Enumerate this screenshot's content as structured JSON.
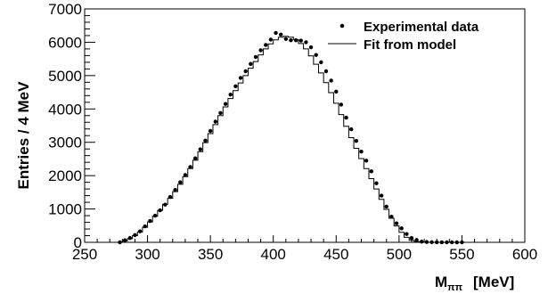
{
  "chart_data": {
    "type": "scatter",
    "title": "",
    "xlabel_main": "M",
    "xlabel_sub": "ππ",
    "xlabel_unit": "[MeV]",
    "ylabel": "Entries / 4 MeV",
    "xlim": [
      250,
      600
    ],
    "ylim": [
      0,
      7000
    ],
    "x_ticks": [
      250,
      300,
      350,
      400,
      450,
      500,
      550,
      600
    ],
    "y_ticks": [
      0,
      1000,
      2000,
      3000,
      4000,
      5000,
      6000,
      7000
    ],
    "bin_width": 4,
    "legend_position": "top-right",
    "series": [
      {
        "name": "Experimental data",
        "style": "markers",
        "x": [
          278,
          282,
          286,
          290,
          294,
          298,
          302,
          306,
          310,
          314,
          318,
          322,
          326,
          330,
          334,
          338,
          342,
          346,
          350,
          354,
          358,
          362,
          366,
          370,
          374,
          378,
          382,
          386,
          390,
          394,
          398,
          402,
          406,
          410,
          414,
          418,
          422,
          426,
          430,
          434,
          438,
          442,
          446,
          450,
          454,
          458,
          462,
          466,
          470,
          474,
          478,
          482,
          486,
          490,
          494,
          498,
          502,
          506,
          510,
          514,
          518,
          522,
          526,
          530,
          534,
          538,
          542,
          546,
          550
        ],
        "y": [
          0,
          60,
          130,
          220,
          330,
          480,
          640,
          800,
          960,
          1130,
          1360,
          1570,
          1800,
          2020,
          2260,
          2520,
          2790,
          3050,
          3340,
          3620,
          3880,
          4150,
          4430,
          4680,
          4930,
          5130,
          5350,
          5560,
          5760,
          5920,
          6080,
          6280,
          6230,
          6100,
          6060,
          6060,
          6050,
          6000,
          5850,
          5620,
          5400,
          5130,
          4850,
          4520,
          4130,
          3740,
          3390,
          3040,
          2720,
          2450,
          2130,
          1770,
          1400,
          1070,
          770,
          570,
          420,
          250,
          130,
          70,
          20,
          10,
          5,
          2,
          1,
          0,
          0,
          0,
          0
        ]
      },
      {
        "name": "Fit from model",
        "style": "step",
        "x": [
          278,
          282,
          286,
          290,
          294,
          298,
          302,
          306,
          310,
          314,
          318,
          322,
          326,
          330,
          334,
          338,
          342,
          346,
          350,
          354,
          358,
          362,
          366,
          370,
          374,
          378,
          382,
          386,
          390,
          394,
          398,
          402,
          406,
          410,
          414,
          418,
          422,
          426,
          430,
          434,
          438,
          442,
          446,
          450,
          454,
          458,
          462,
          466,
          470,
          474,
          478,
          482,
          486,
          490,
          494,
          498,
          502,
          506,
          510,
          514,
          518,
          522,
          526
        ],
        "y": [
          0,
          40,
          110,
          200,
          310,
          450,
          610,
          780,
          960,
          1140,
          1320,
          1520,
          1740,
          1970,
          2210,
          2460,
          2720,
          2990,
          3260,
          3530,
          3800,
          4060,
          4310,
          4550,
          4780,
          5000,
          5220,
          5420,
          5620,
          5800,
          5950,
          6070,
          6150,
          6180,
          6150,
          6080,
          5960,
          5800,
          5590,
          5340,
          5080,
          4790,
          4490,
          4170,
          3830,
          3480,
          3140,
          2820,
          2510,
          2210,
          1910,
          1600,
          1290,
          990,
          720,
          490,
          300,
          150,
          60,
          20,
          5,
          0,
          0
        ]
      }
    ]
  }
}
